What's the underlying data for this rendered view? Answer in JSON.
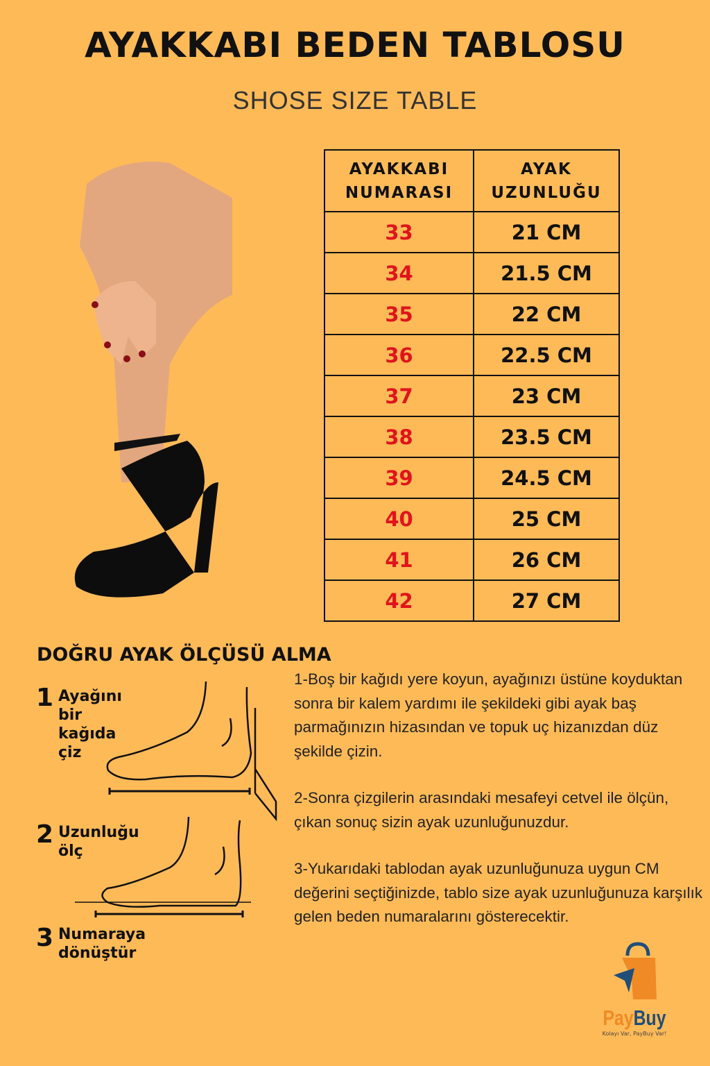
{
  "title": "AYAKKABI BEDEN TABLOSU",
  "subtitle": "SHOSE SIZE TABLE",
  "table": {
    "headers": [
      "AYAKKABI NUMARASI",
      "AYAK UZUNLUĞU"
    ],
    "rows": [
      {
        "size": "33",
        "length": "21 CM"
      },
      {
        "size": "34",
        "length": "21.5 CM"
      },
      {
        "size": "35",
        "length": "22 CM"
      },
      {
        "size": "36",
        "length": "22.5 CM"
      },
      {
        "size": "37",
        "length": "23 CM"
      },
      {
        "size": "38",
        "length": "23.5 CM"
      },
      {
        "size": "39",
        "length": "24.5 CM"
      },
      {
        "size": "40",
        "length": "25 CM"
      },
      {
        "size": "41",
        "length": "26 CM"
      },
      {
        "size": "42",
        "length": "27 CM"
      }
    ]
  },
  "howto": {
    "heading": "DOĞRU AYAK ÖLÇÜSÜ ALMA",
    "steps": [
      {
        "num": "1",
        "label": "Ayağını bir kağıda çiz"
      },
      {
        "num": "2",
        "label": "Uzunluğu ölç"
      },
      {
        "num": "3",
        "label": "Numaraya dönüştür"
      }
    ]
  },
  "instructions": [
    "1-Boş bir kağıdı yere koyun, ayağınızı üstüne koyduktan sonra bir kalem yardımı ile şekildeki gibi ayak baş parmağınızın hizasından ve topuk uç hizanızdan düz şekilde çizin.",
    "2-Sonra çizgilerin arasındaki mesafeyi cetvel ile ölçün, çıkan sonuç sizin ayak uzunluğunuzdur.",
    "3-Yukarıdaki tablodan ayak uzunluğunuza uygun CM değerini seçtiğinizde, tablo size ayak uzunluğunuza karşılık gelen beden numaralarını gösterecektir."
  ],
  "logo": {
    "pay": "Pay",
    "buy": "Buy",
    "tagline": "Kolayı Var, PayBuy Var!"
  },
  "colors": {
    "background": "#FFBA58",
    "size_text": "#E0141B",
    "logo_orange": "#F08A24",
    "logo_blue": "#1F4E79"
  }
}
